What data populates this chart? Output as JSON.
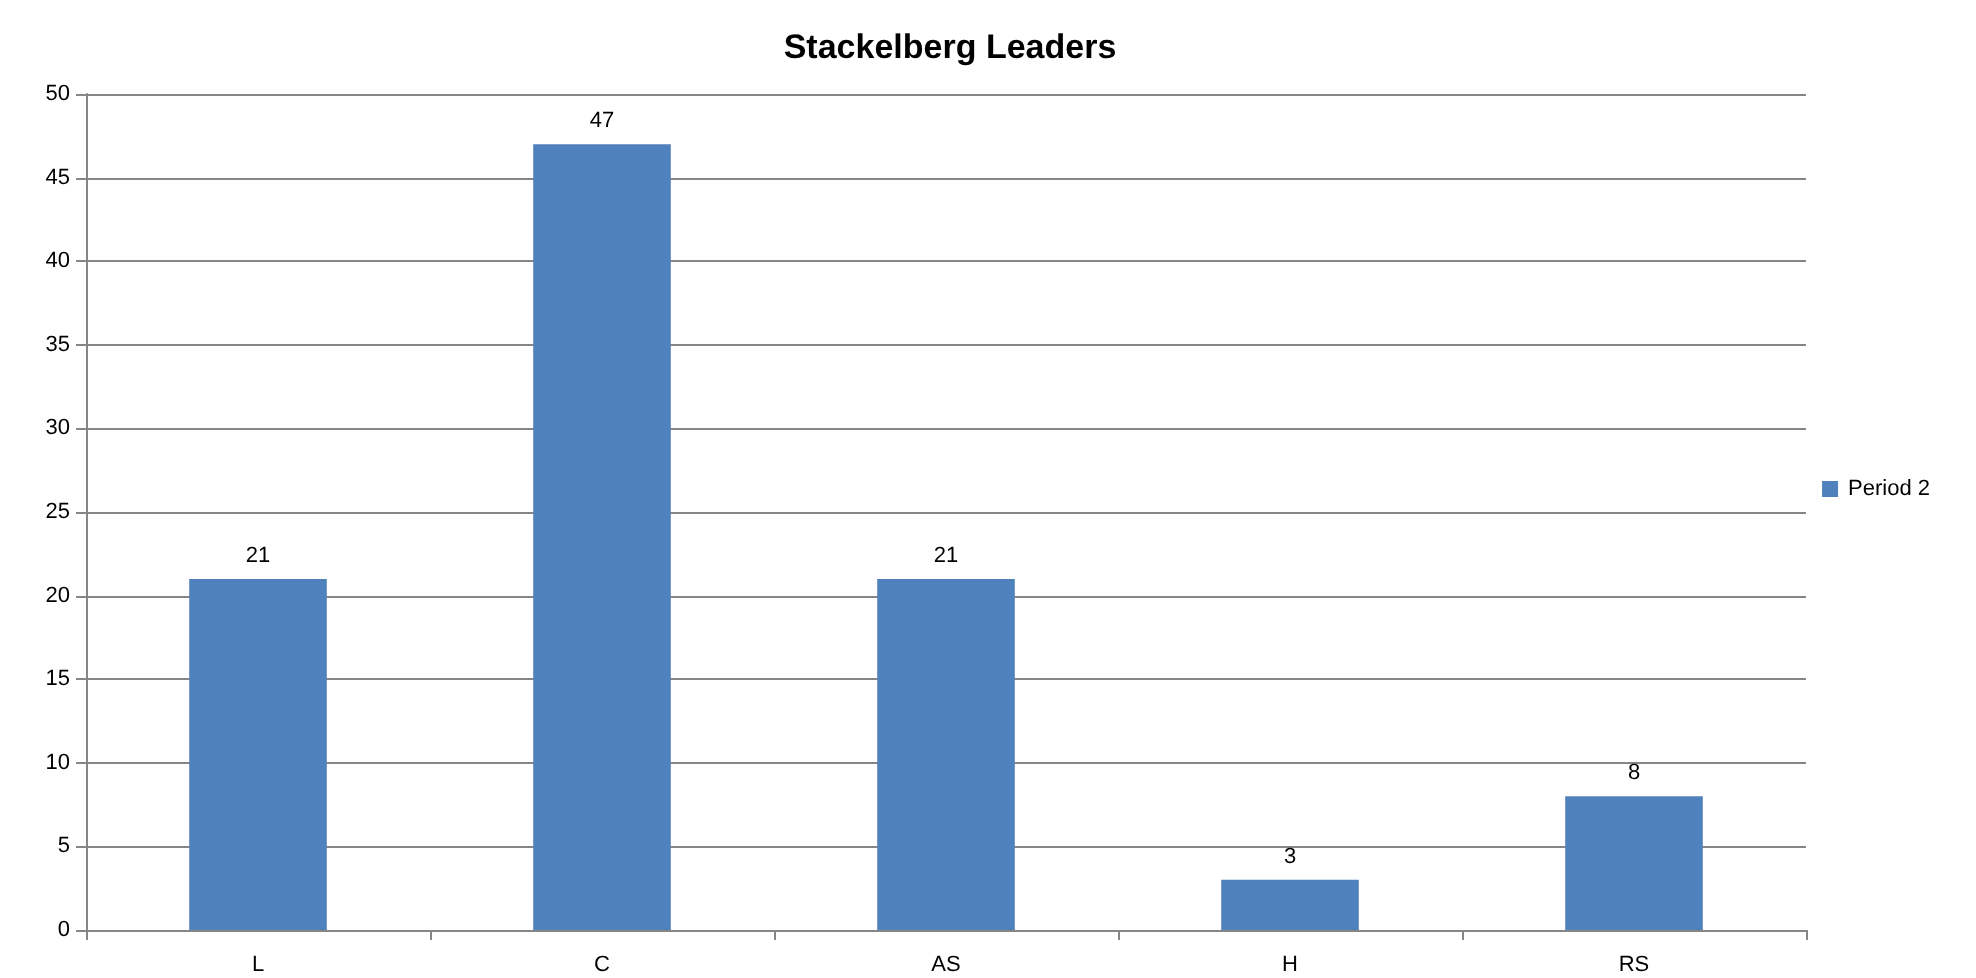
{
  "chart_data": {
    "type": "bar",
    "title": "Stackelberg Leaders",
    "categories": [
      "L",
      "C",
      "AS",
      "H",
      "RS"
    ],
    "series": [
      {
        "name": "Period 2",
        "color": "#4f81bd",
        "values": [
          21,
          47,
          21,
          3,
          8
        ]
      }
    ],
    "ylim": [
      0,
      50
    ],
    "yticks": [
      0,
      5,
      10,
      15,
      20,
      25,
      30,
      35,
      40,
      45,
      50
    ],
    "grid": "y",
    "legend": "right",
    "data_labels": true
  }
}
